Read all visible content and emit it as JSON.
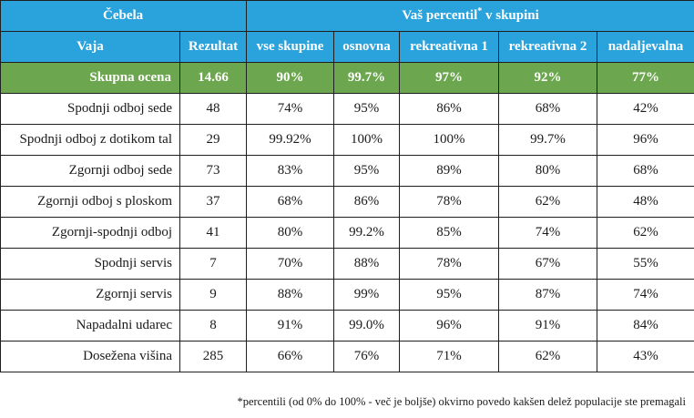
{
  "header": {
    "group": "Čebela",
    "percentile_title": "Vaš percentil",
    "percentile_star": "*",
    "percentile_suffix": " v skupini",
    "columns": [
      "Vaja",
      "Rezultat",
      "vse skupine",
      "osnovna",
      "rekreativna 1",
      "rekreativna 2",
      "nadaljevalna"
    ]
  },
  "summary": {
    "name": "Skupna ocena",
    "result": "14.66",
    "values": [
      "90%",
      "99.7%",
      "97%",
      "92%",
      "77%"
    ]
  },
  "rows": [
    {
      "name": "Spodnji odboj sede",
      "result": "48",
      "values": [
        "74%",
        "95%",
        "86%",
        "68%",
        "42%"
      ]
    },
    {
      "name": "Spodnji odboj z dotikom tal",
      "result": "29",
      "values": [
        "99.92%",
        "100%",
        "100%",
        "99.7%",
        "96%"
      ]
    },
    {
      "name": "Zgornji odboj sede",
      "result": "73",
      "values": [
        "83%",
        "95%",
        "89%",
        "80%",
        "68%"
      ]
    },
    {
      "name": "Zgornji odboj s ploskom",
      "result": "37",
      "values": [
        "68%",
        "86%",
        "78%",
        "62%",
        "48%"
      ]
    },
    {
      "name": "Zgornji-spodnji odboj",
      "result": "41",
      "values": [
        "80%",
        "99.2%",
        "85%",
        "74%",
        "62%"
      ]
    },
    {
      "name": "Spodnji servis",
      "result": "7",
      "values": [
        "70%",
        "88%",
        "78%",
        "67%",
        "55%"
      ]
    },
    {
      "name": "Zgornji servis",
      "result": "9",
      "values": [
        "88%",
        "99%",
        "95%",
        "87%",
        "74%"
      ]
    },
    {
      "name": "Napadalni udarec",
      "result": "8",
      "values": [
        "91%",
        "99.0%",
        "96%",
        "91%",
        "84%"
      ]
    },
    {
      "name": "Dosežena višina",
      "result": "285",
      "values": [
        "66%",
        "76%",
        "71%",
        "62%",
        "43%"
      ]
    }
  ],
  "footnote": "*percentili (od 0% do 100% - več je boljše) okvirno povedo kakšen delež populacije ste premagali",
  "colors": {
    "header": "#2aa3dd",
    "summary": "#6ca64f",
    "border": "#1f1f1f"
  }
}
